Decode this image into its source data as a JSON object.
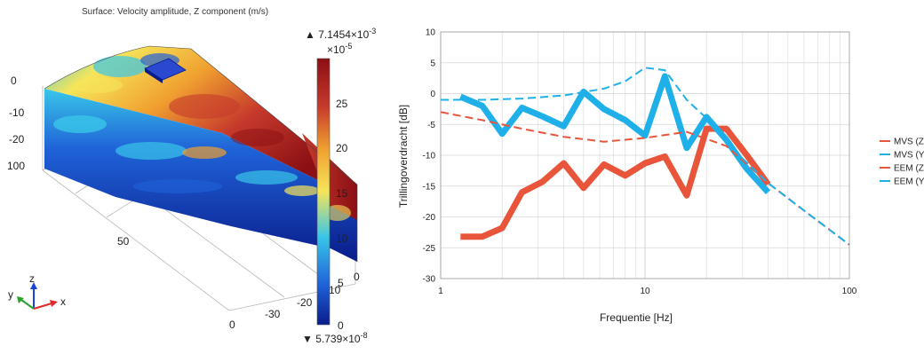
{
  "surface_plot": {
    "title": "Surface: Velocity amplitude, Z component (m/s)",
    "colorbar": {
      "max_label": "▲ 7.1454×10",
      "max_exp": "-3",
      "scale_label": "×10",
      "scale_exp": "-5",
      "min_label": "▼ 5.739×10",
      "min_exp": "-8",
      "ticks": [
        "25",
        "20",
        "15",
        "10",
        "5",
        "0"
      ]
    },
    "axis_ticks_z": [
      "0",
      "-10",
      "-20",
      "100"
    ],
    "axis_ticks_bottom": [
      "50",
      "0",
      "-30",
      "-20",
      "-10",
      "0"
    ],
    "triad": {
      "x": "x",
      "y": "y",
      "z": "z"
    },
    "colors": {
      "deep_red": "#8b0f14",
      "red": "#c63a2c",
      "orange": "#f0a030",
      "yellow": "#f6e55a",
      "cyan": "#39c6e8",
      "blue": "#1f62d8",
      "navy": "#0a1c8a"
    }
  },
  "chart_data": {
    "type": "line",
    "title": "",
    "xlabel": "Frequentie [Hz]",
    "ylabel": "Trillingoverdracht [dB]",
    "xscale": "log",
    "xlim": [
      1,
      100
    ],
    "ylim": [
      -30,
      10
    ],
    "x_tick_labels": [
      "1",
      "10",
      "100"
    ],
    "y_ticks": [
      10,
      5,
      0,
      -5,
      -10,
      -15,
      -20,
      -25,
      -30
    ],
    "grid": true,
    "legend_position": "right",
    "series": [
      {
        "name": "MVS (Z)",
        "style": "solid-thick",
        "color": "#e8553a",
        "x": [
          1.25,
          1.6,
          2,
          2.5,
          3.15,
          4,
          5,
          6.3,
          8,
          10,
          12.5,
          16,
          20,
          25,
          31.5,
          40
        ],
        "y": [
          -23.2,
          -23.2,
          -21.8,
          -16,
          -14.3,
          -11.3,
          -15.3,
          -11.5,
          -13.3,
          -11.3,
          -10.2,
          -16.5,
          -5.7,
          -5.7,
          -10,
          -14.7
        ]
      },
      {
        "name": "MVS (Y)",
        "style": "solid-thick",
        "color": "#1fb0ea",
        "x": [
          1.25,
          1.6,
          2,
          2.5,
          3.15,
          4,
          5,
          6.3,
          8,
          10,
          12.5,
          16,
          20,
          25,
          31.5,
          40
        ],
        "y": [
          -0.5,
          -2,
          -6.5,
          -2.3,
          -3.7,
          -5.3,
          0.3,
          -2.5,
          -4.3,
          -6.8,
          2.8,
          -8.8,
          -3.8,
          -7.5,
          -12.2,
          -16
        ]
      },
      {
        "name": "EEM (Z)",
        "style": "dashed",
        "color": "#e8553a",
        "x": [
          1,
          1.6,
          2.5,
          4,
          6.3,
          10,
          16,
          25,
          40,
          63,
          100
        ],
        "y": [
          -3,
          -4.3,
          -5.7,
          -7,
          -7.8,
          -7.2,
          -6.2,
          -8.5,
          -14.5,
          -19.5,
          -24.5
        ]
      },
      {
        "name": "EEM (Y)",
        "style": "dashed",
        "color": "#1fb0ea",
        "x": [
          1,
          1.6,
          2.5,
          4,
          6.3,
          8,
          10,
          12.5,
          16,
          20,
          25,
          40,
          63,
          100
        ],
        "y": [
          -1,
          -1,
          -0.8,
          -0.3,
          0.8,
          2,
          4.2,
          3.8,
          -1,
          -4,
          -8,
          -14.5,
          -19.5,
          -24.5
        ]
      }
    ]
  }
}
